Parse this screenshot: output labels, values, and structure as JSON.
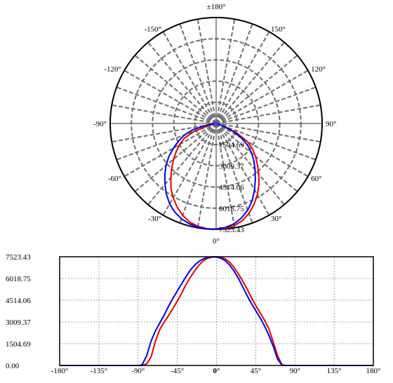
{
  "chart_data": [
    {
      "type": "polar",
      "angle_labels": [
        {
          "deg": 180,
          "label": "±180°"
        },
        {
          "deg": 150,
          "label": "150°"
        },
        {
          "deg": 120,
          "label": "120°"
        },
        {
          "deg": 90,
          "label": "90°"
        },
        {
          "deg": 60,
          "label": "60°"
        },
        {
          "deg": 30,
          "label": "30°"
        },
        {
          "deg": 0,
          "label": "0°"
        },
        {
          "deg": -30,
          "label": "-30°"
        },
        {
          "deg": -60,
          "label": "-60°"
        },
        {
          "deg": -90,
          "label": "-90°"
        },
        {
          "deg": -120,
          "label": "-120°"
        },
        {
          "deg": -150,
          "label": "-150°"
        }
      ],
      "radial_ticks": [
        1504.69,
        3009.37,
        4514.06,
        6018.75,
        7523.43
      ],
      "radial_tick_labels": [
        "1504.69",
        "3009.37",
        "4514.06",
        "6018.75",
        "7523.43"
      ],
      "r_max": 7523.43,
      "series": [
        {
          "color": "#e00000",
          "angles": [
            -180,
            -90,
            -85,
            -80,
            -75,
            -70,
            -65,
            -60,
            -55,
            -50,
            -45,
            -40,
            -35,
            -30,
            -25,
            -20,
            -15,
            -10,
            -5,
            0,
            5,
            10,
            15,
            20,
            25,
            30,
            35,
            40,
            45,
            50,
            55,
            60,
            65,
            70,
            75,
            78,
            80,
            90,
            180
          ],
          "values": [
            0,
            0,
            0,
            120,
            600,
            1700,
            2500,
            3000,
            3450,
            3950,
            4450,
            5000,
            5600,
            6100,
            6550,
            6950,
            7250,
            7420,
            7500,
            7520,
            7490,
            7380,
            7150,
            6800,
            6350,
            5850,
            5300,
            4700,
            4150,
            3650,
            3150,
            2550,
            1650,
            700,
            50,
            0,
            0,
            0,
            0
          ]
        },
        {
          "color": "#0000e0",
          "angles": [
            -180,
            -90,
            -88,
            -85,
            -80,
            -75,
            -70,
            -65,
            -60,
            -55,
            -50,
            -45,
            -40,
            -35,
            -30,
            -25,
            -20,
            -15,
            -10,
            -5,
            0,
            5,
            10,
            15,
            20,
            25,
            30,
            35,
            40,
            45,
            50,
            55,
            60,
            65,
            70,
            75,
            80,
            90,
            180
          ],
          "values": [
            0,
            0,
            0,
            80,
            700,
            1700,
            2400,
            2950,
            3500,
            4100,
            4650,
            5150,
            5650,
            6150,
            6600,
            6950,
            7200,
            7380,
            7480,
            7520,
            7500,
            7420,
            7250,
            6950,
            6550,
            6050,
            5450,
            4850,
            4300,
            3800,
            3300,
            2750,
            2100,
            1350,
            450,
            30,
            0,
            0,
            0
          ]
        }
      ]
    },
    {
      "type": "line",
      "x_ticks": [
        -180,
        -135,
        -90,
        -45,
        0,
        45,
        90,
        135,
        180
      ],
      "x_tick_labels": [
        "-180°",
        "-135°",
        "-90°",
        "-45°",
        "0°",
        "45°",
        "90°",
        "135°",
        "180°"
      ],
      "xlim": [
        -180,
        180
      ],
      "y_ticks": [
        0,
        1504.69,
        3009.37,
        4514.06,
        6018.75,
        7523.43
      ],
      "y_tick_labels": [
        "0.00",
        "1504.69",
        "3009.37",
        "4514.06",
        "6018.75",
        "7523.43"
      ],
      "ylim": [
        0,
        7523.43
      ],
      "grid": true,
      "series_ref": "same as polar series"
    }
  ]
}
